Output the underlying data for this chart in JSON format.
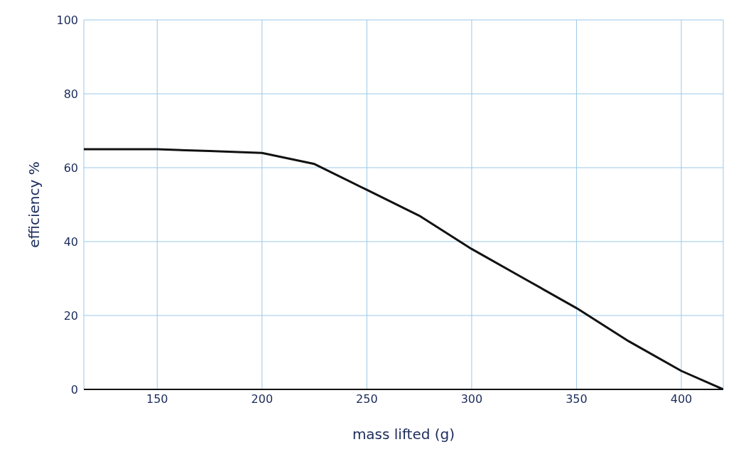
{
  "chart_data": {
    "type": "line",
    "xlabel": "mass lifted (g)",
    "ylabel": "efficiency %",
    "x": [
      115,
      150,
      175,
      200,
      225,
      250,
      275,
      300,
      325,
      350,
      375,
      400,
      420
    ],
    "series": [
      {
        "color": "#111111",
        "values": [
          65,
          65,
          64.5,
          64,
          61,
          54,
          47,
          38,
          30,
          22,
          13,
          5,
          0
        ]
      }
    ],
    "xlim": [
      115,
      420
    ],
    "xticks": [
      150,
      200,
      250,
      300,
      350,
      400
    ],
    "ylim": [
      0,
      100
    ],
    "yticks": [
      0,
      20,
      40,
      60,
      80,
      100
    ],
    "grid": true,
    "marker": "none"
  }
}
